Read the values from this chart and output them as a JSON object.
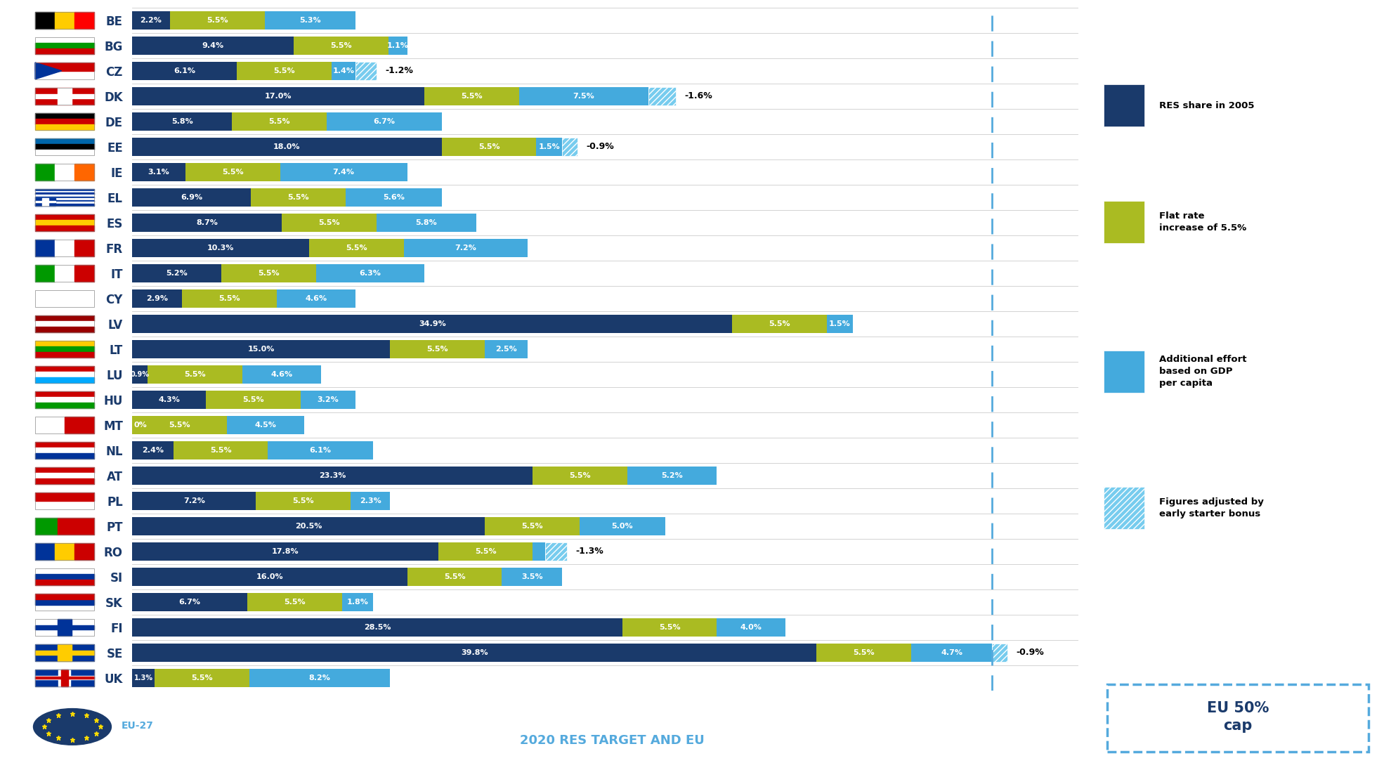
{
  "countries": [
    "BE",
    "BG",
    "CZ",
    "DK",
    "DE",
    "EE",
    "IE",
    "EL",
    "ES",
    "FR",
    "IT",
    "CY",
    "LV",
    "LT",
    "LU",
    "HU",
    "MT",
    "NL",
    "AT",
    "PL",
    "PT",
    "RO",
    "SI",
    "SK",
    "FI",
    "SE",
    "UK"
  ],
  "res2005": [
    2.2,
    9.4,
    6.1,
    17.0,
    5.8,
    18.0,
    3.1,
    6.9,
    8.7,
    10.3,
    5.2,
    2.9,
    34.9,
    15.0,
    0.9,
    4.3,
    0.0,
    2.4,
    23.3,
    7.2,
    20.5,
    17.8,
    16.0,
    6.7,
    28.5,
    39.8,
    1.3
  ],
  "flat55": [
    5.5,
    5.5,
    5.5,
    5.5,
    5.5,
    5.5,
    5.5,
    5.5,
    5.5,
    5.5,
    5.5,
    5.5,
    5.5,
    5.5,
    5.5,
    5.5,
    5.5,
    5.5,
    5.5,
    5.5,
    5.5,
    5.5,
    5.5,
    5.5,
    5.5,
    5.5,
    5.5
  ],
  "gdp_effort": [
    5.3,
    1.1,
    1.4,
    7.5,
    6.7,
    1.5,
    7.4,
    5.6,
    5.8,
    7.2,
    6.3,
    4.6,
    1.5,
    2.5,
    4.6,
    3.2,
    4.5,
    6.1,
    5.2,
    2.3,
    5.0,
    0.7,
    3.5,
    1.8,
    4.0,
    4.7,
    8.2
  ],
  "adjustment": [
    0,
    0,
    -1.2,
    -1.6,
    0,
    -0.9,
    0,
    0,
    0,
    0,
    0,
    0,
    0,
    0,
    0,
    0,
    0,
    0,
    0,
    0,
    0,
    -1.3,
    0,
    0,
    0,
    -0.9,
    0
  ],
  "color_blue": "#1a3a6b",
  "color_green": "#aabb22",
  "color_lightblue": "#44aadd",
  "color_hatch": "#77ccee",
  "legend_bg": "#888888",
  "dashed_color": "#55aadd",
  "title_bottom": "2020 RES TARGET AND EU",
  "eu_cap_text": "EU 50%\ncap",
  "legend_labels": [
    "RES share in 2005",
    "Flat rate\nincrease of 5.5%",
    "Additional effort\nbased on GDP\nper capita",
    "Figures adjusted by\nearly starter bonus"
  ]
}
